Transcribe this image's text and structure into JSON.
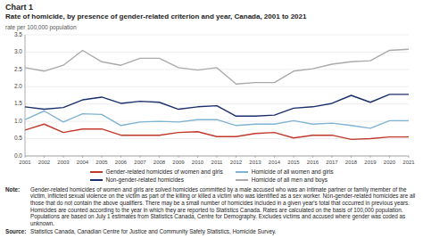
{
  "chart_data": {
    "type": "line",
    "title": "Chart 1",
    "subtitle": "Rate of homicide,  by presence of gender-related criterion  and year, Canada, 2001 to 2021",
    "y_label": "rate per 100,000 population",
    "x": [
      2001,
      2002,
      2003,
      2004,
      2005,
      2006,
      2007,
      2008,
      2009,
      2010,
      2011,
      2012,
      2013,
      2014,
      2015,
      2016,
      2017,
      2018,
      2019,
      2020,
      2021
    ],
    "series": [
      {
        "name": "Gender-related homicides of women and girls",
        "color": "#c0392b",
        "values": [
          0.75,
          0.92,
          0.68,
          0.78,
          0.78,
          0.6,
          0.6,
          0.6,
          0.68,
          0.7,
          0.56,
          0.56,
          0.65,
          0.68,
          0.52,
          0.6,
          0.6,
          0.48,
          0.5,
          0.55,
          0.55
        ]
      },
      {
        "name": "Non-gender-related homicides",
        "color": "#1a2f6e",
        "values": [
          1.42,
          1.35,
          1.4,
          1.62,
          1.7,
          1.52,
          1.58,
          1.55,
          1.35,
          1.42,
          1.45,
          1.15,
          1.15,
          1.18,
          1.38,
          1.42,
          1.52,
          1.75,
          1.55,
          1.78,
          1.78
        ]
      },
      {
        "name": "Homicide of all women and girls",
        "color": "#7fb3d3",
        "values": [
          1.05,
          1.3,
          0.98,
          1.22,
          1.2,
          0.88,
          0.98,
          1.0,
          0.98,
          1.05,
          1.05,
          0.88,
          0.92,
          0.92,
          1.02,
          0.92,
          0.95,
          0.88,
          0.8,
          1.02,
          1.02
        ]
      },
      {
        "name": "Homicide of all men and boys",
        "color": "#aaaaaa",
        "values": [
          2.55,
          2.45,
          2.62,
          3.05,
          2.72,
          2.62,
          2.82,
          2.82,
          2.55,
          2.48,
          2.55,
          2.08,
          2.12,
          2.12,
          2.45,
          2.52,
          2.65,
          2.72,
          2.75,
          3.05,
          3.08
        ]
      }
    ],
    "xlim": [
      2001,
      2021
    ],
    "xticks": [
      2001,
      2002,
      2003,
      2004,
      2005,
      2006,
      2007,
      2008,
      2009,
      2010,
      2011,
      2012,
      2013,
      2014,
      2015,
      2016,
      2017,
      2018,
      2019,
      2020,
      2021
    ],
    "ylim": [
      0,
      3.5
    ],
    "yticks": [
      {
        "value": 0,
        "label": "0.0"
      },
      0.5,
      {
        "value": 1,
        "label": "1.0"
      },
      1.5,
      {
        "value": 2,
        "label": "2.0"
      },
      2.5,
      {
        "value": 3,
        "label": "3.0"
      },
      3.5
    ],
    "grid": true,
    "legend": "bottom",
    "note": {
      "label": "Note:",
      "text": "Gender-related homicides of women and girls are solved homicides committed by a male accused who was an intimate partner or family member of the victim, inflicted sexual violence on the victim as part of the killing or killed a victim who was identified as a sex worker. Non-gender-related homicides are all those that do not contain the above qualifiers. There may be a small number of homicides included in a given year's total that occurred in previous years. Homicides are counted according to the year in which they are reported to Statistics Canada. Rates are calculated on the basis of 100,000 population. Populations are based on July 1 estimates from Statistics Canada, Centre for Demography. Excludes victims and accused where gender was coded as unknown."
    },
    "source": {
      "label": "Source:",
      "text": "Statistics Canada, Canadian Centre for Justice and Community Safety Statistics, Homicide Survey."
    }
  }
}
